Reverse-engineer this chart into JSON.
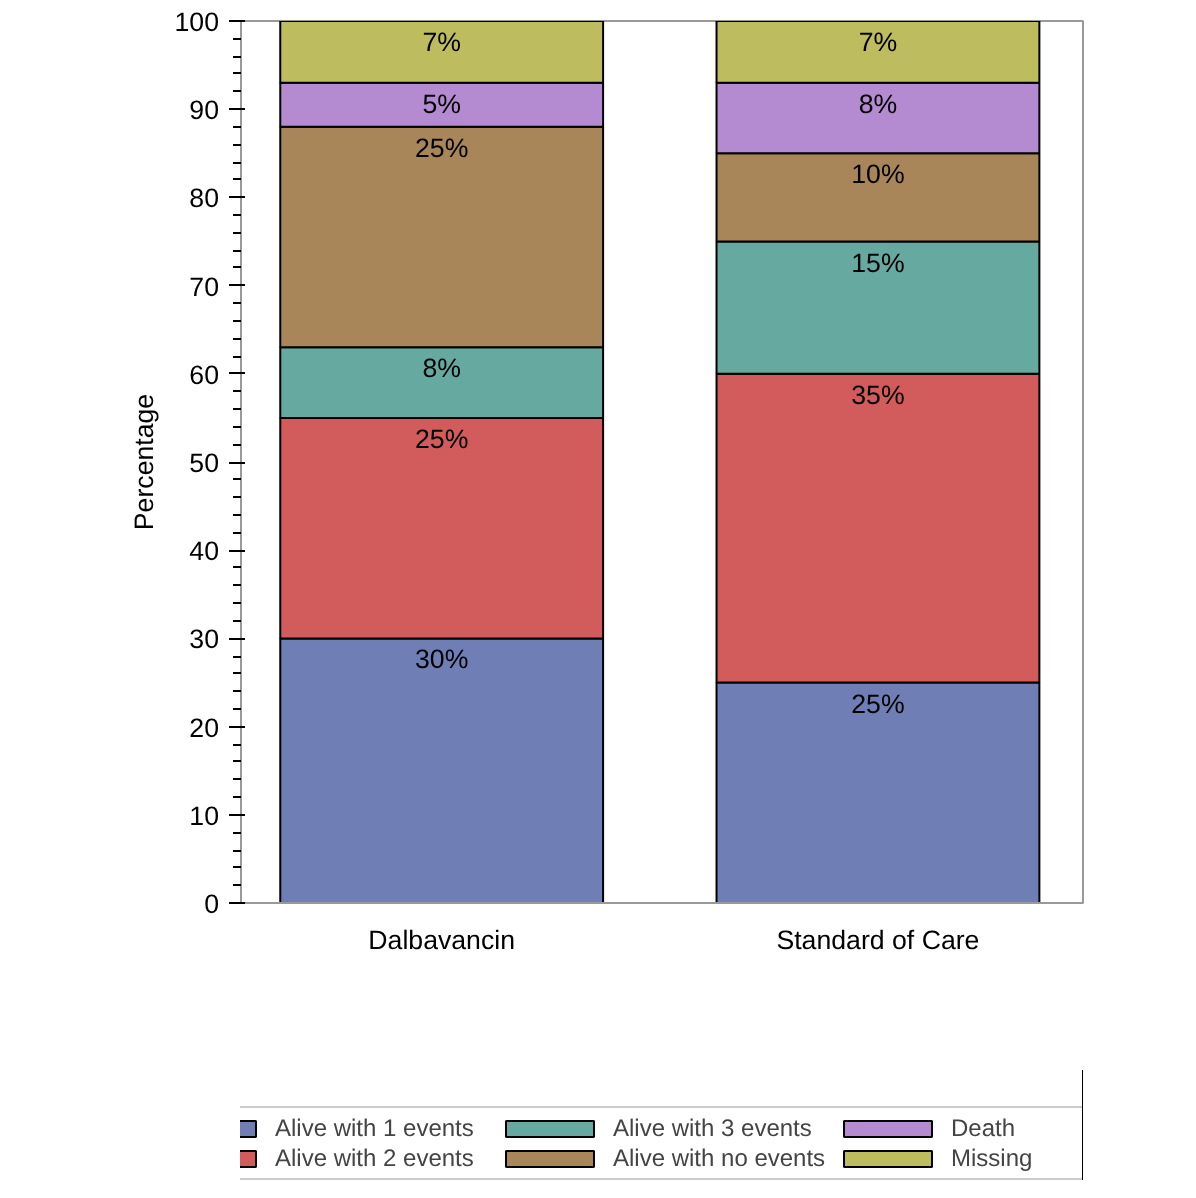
{
  "chart_data": {
    "type": "bar",
    "stacked": true,
    "ylabel": "Percentage",
    "categories": [
      "Dalbavancin",
      "Standard of Care"
    ],
    "ylim": [
      0,
      100
    ],
    "yticks": [
      0,
      10,
      20,
      30,
      40,
      50,
      60,
      70,
      80,
      90,
      100
    ],
    "grid": false,
    "legend": "bottom",
    "series": [
      {
        "name": "Alive with 1 events",
        "color": "#6f7fb5",
        "values": [
          30,
          25
        ],
        "value_labels": [
          "30%",
          "25%"
        ]
      },
      {
        "name": "Alive with 2 events",
        "color": "#d25b5b",
        "values": [
          25,
          35
        ],
        "value_labels": [
          "25%",
          "35%"
        ]
      },
      {
        "name": "Alive with 3 events",
        "color": "#66a9a0",
        "values": [
          8,
          15
        ],
        "value_labels": [
          "8%",
          "15%"
        ]
      },
      {
        "name": "Alive with no events",
        "color": "#a8865a",
        "values": [
          25,
          10
        ],
        "value_labels": [
          "25%",
          "10%"
        ]
      },
      {
        "name": "Death",
        "color": "#b48ad0",
        "values": [
          5,
          8
        ],
        "value_labels": [
          "5%",
          "8%"
        ]
      },
      {
        "name": "Missing",
        "color": "#bdbd5f",
        "values": [
          7,
          7
        ],
        "value_labels": [
          "7%",
          "7%"
        ]
      }
    ]
  }
}
